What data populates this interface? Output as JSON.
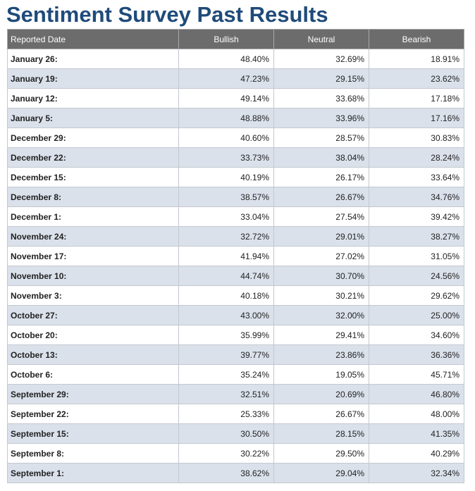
{
  "page_title": "Sentiment Survey Past Results",
  "table": {
    "headers": [
      "Reported Date",
      "Bullish",
      "Neutral",
      "Bearish"
    ],
    "rows": [
      [
        "January 26:",
        "48.40%",
        "32.69%",
        "18.91%"
      ],
      [
        "January 19:",
        "47.23%",
        "29.15%",
        "23.62%"
      ],
      [
        "January 12:",
        "49.14%",
        "33.68%",
        "17.18%"
      ],
      [
        "January 5:",
        "48.88%",
        "33.96%",
        "17.16%"
      ],
      [
        "December 29:",
        "40.60%",
        "28.57%",
        "30.83%"
      ],
      [
        "December 22:",
        "33.73%",
        "38.04%",
        "28.24%"
      ],
      [
        "December 15:",
        "40.19%",
        "26.17%",
        "33.64%"
      ],
      [
        "December 8:",
        "38.57%",
        "26.67%",
        "34.76%"
      ],
      [
        "December 1:",
        "33.04%",
        "27.54%",
        "39.42%"
      ],
      [
        "November 24:",
        "32.72%",
        "29.01%",
        "38.27%"
      ],
      [
        "November 17:",
        "41.94%",
        "27.02%",
        "31.05%"
      ],
      [
        "November 10:",
        "44.74%",
        "30.70%",
        "24.56%"
      ],
      [
        "November 3:",
        "40.18%",
        "30.21%",
        "29.62%"
      ],
      [
        "October 27:",
        "43.00%",
        "32.00%",
        "25.00%"
      ],
      [
        "October 20:",
        "35.99%",
        "29.41%",
        "34.60%"
      ],
      [
        "October 13:",
        "39.77%",
        "23.86%",
        "36.36%"
      ],
      [
        "October 6:",
        "35.24%",
        "19.05%",
        "45.71%"
      ],
      [
        "September 29:",
        "32.51%",
        "20.69%",
        "46.80%"
      ],
      [
        "September 22:",
        "25.33%",
        "26.67%",
        "48.00%"
      ],
      [
        "September 15:",
        "30.50%",
        "28.15%",
        "41.35%"
      ],
      [
        "September 8:",
        "30.22%",
        "29.50%",
        "40.29%"
      ],
      [
        "September 1:",
        "38.62%",
        "29.04%",
        "32.34%"
      ]
    ]
  },
  "colors": {
    "title": "#1f4b7a",
    "header_bg": "#6c6c6c",
    "row_alt_bg": "#dae1eb",
    "row_bg": "#ffffff"
  }
}
